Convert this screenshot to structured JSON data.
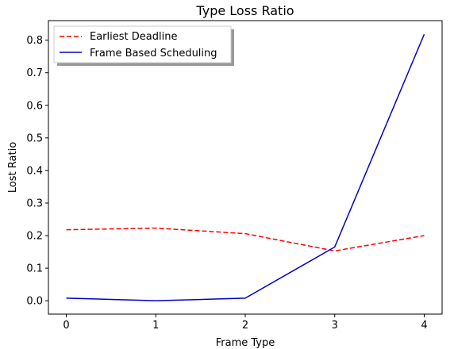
{
  "chart_data": {
    "type": "line",
    "title": "Type Loss Ratio",
    "xlabel": "Frame Type",
    "ylabel": "Lost Ratio",
    "x": [
      0,
      1,
      2,
      3,
      4
    ],
    "xlim": [
      -0.2,
      4.2
    ],
    "ylim": [
      -0.041,
      0.86
    ],
    "xticks": [
      "0",
      "1",
      "2",
      "3",
      "4"
    ],
    "yticks": [
      "0.0",
      "0.1",
      "0.2",
      "0.3",
      "0.4",
      "0.5",
      "0.6",
      "0.7",
      "0.8"
    ],
    "grid": false,
    "legend_position": "top-left",
    "series": [
      {
        "name": "Earliest Deadline",
        "values": [
          0.218,
          0.223,
          0.206,
          0.153,
          0.2
        ],
        "color": "#ff0000",
        "style": "dashed"
      },
      {
        "name": "Frame Based Scheduling",
        "values": [
          0.008,
          0.0,
          0.008,
          0.165,
          0.818
        ],
        "color": "#0000cc",
        "style": "solid"
      }
    ]
  }
}
